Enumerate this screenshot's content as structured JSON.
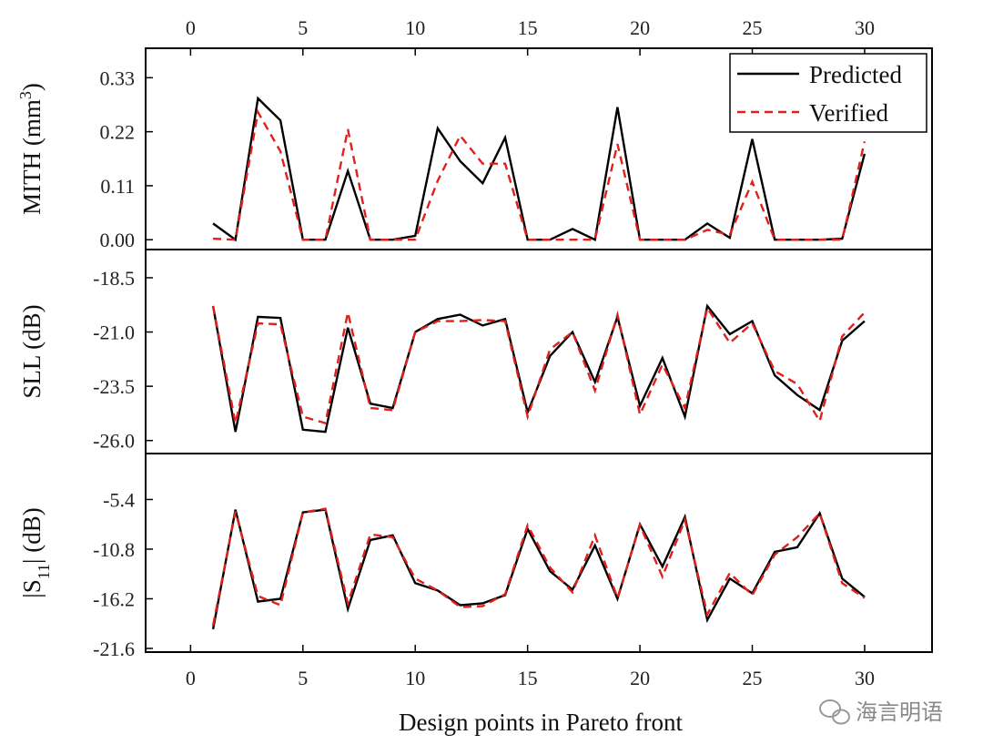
{
  "chart_data": {
    "type": "line",
    "x": [
      1,
      2,
      3,
      4,
      5,
      6,
      7,
      8,
      9,
      10,
      11,
      12,
      13,
      14,
      15,
      16,
      17,
      18,
      19,
      20,
      21,
      22,
      23,
      24,
      25,
      26,
      27,
      28,
      29,
      30
    ],
    "xlabel": "Design points in Pareto front",
    "xlim": [
      -2,
      33
    ],
    "x_ticks": [
      0,
      5,
      10,
      15,
      20,
      25,
      30
    ],
    "legend": {
      "position": "top-right"
    },
    "panels": [
      {
        "id": "mith",
        "ylabel": "MITH (mm",
        "ylabel_sup": "3",
        "ylabel_tail": ")",
        "ylim": [
          -0.02,
          0.39
        ],
        "yticks": [
          "0.33",
          "0.22",
          "0.11",
          "0.00"
        ],
        "series": [
          {
            "name": "Predicted",
            "values": [
              0.033,
              0.0,
              0.288,
              0.243,
              0.0,
              0.0,
              0.14,
              0.0,
              0.0,
              0.008,
              0.227,
              0.16,
              0.115,
              0.208,
              0.0,
              0.0,
              0.022,
              0.0,
              0.27,
              0.0,
              0.0,
              0.0,
              0.033,
              0.004,
              0.205,
              0.0,
              0.0,
              0.0,
              0.002,
              0.175
            ]
          },
          {
            "name": "Verified",
            "values": [
              0.002,
              0.0,
              0.26,
              0.18,
              0.0,
              0.0,
              0.225,
              0.0,
              0.0,
              0.0,
              0.12,
              0.212,
              0.155,
              0.155,
              0.0,
              0.0,
              0.0,
              0.0,
              0.195,
              0.0,
              0.0,
              0.0,
              0.02,
              0.01,
              0.118,
              0.0,
              0.0,
              0.0,
              0.0,
              0.2
            ]
          }
        ]
      },
      {
        "id": "sll",
        "ylabel": "SLL (dB)",
        "ylim": [
          -26.6,
          -17.2
        ],
        "yticks": [
          "-18.5",
          "-21.0",
          "-23.5",
          "-26.0"
        ],
        "series": [
          {
            "name": "Predicted",
            "values": [
              -19.8,
              -25.6,
              -20.3,
              -20.35,
              -25.5,
              -25.6,
              -20.8,
              -24.3,
              -24.5,
              -21.0,
              -20.4,
              -20.2,
              -20.7,
              -20.4,
              -24.7,
              -22.1,
              -21.0,
              -23.3,
              -20.3,
              -24.4,
              -22.2,
              -24.9,
              -19.8,
              -21.1,
              -20.5,
              -23.0,
              -23.9,
              -24.6,
              -21.4,
              -20.5
            ]
          },
          {
            "name": "Verified",
            "values": [
              -19.8,
              -25.2,
              -20.6,
              -20.65,
              -24.9,
              -25.2,
              -20.1,
              -24.5,
              -24.6,
              -21.0,
              -20.5,
              -20.5,
              -20.45,
              -20.5,
              -24.9,
              -21.8,
              -21.0,
              -23.7,
              -20.2,
              -24.8,
              -22.5,
              -24.5,
              -19.9,
              -21.5,
              -20.6,
              -22.8,
              -23.4,
              -25.1,
              -21.2,
              -20.1
            ]
          }
        ]
      },
      {
        "id": "s11",
        "ylabel": "|S",
        "ylabel_sub": "11",
        "ylabel_tail": "| (dB)",
        "ylim": [
          -22.0,
          -0.4
        ],
        "yticks": [
          "-5.4",
          "-10.8",
          "-16.2",
          "-21.6"
        ],
        "series": [
          {
            "name": "Predicted",
            "values": [
              -19.5,
              -6.5,
              -16.5,
              -16.2,
              -6.8,
              -6.5,
              -17.3,
              -9.8,
              -9.3,
              -14.5,
              -15.3,
              -16.9,
              -16.7,
              -15.8,
              -8.6,
              -13.2,
              -15.2,
              -10.4,
              -16.2,
              -8.1,
              -12.7,
              -7.3,
              -18.5,
              -14.0,
              -15.6,
              -11.1,
              -10.6,
              -6.9,
              -14.0,
              -16.0
            ]
          },
          {
            "name": "Verified",
            "values": [
              -19.1,
              -6.7,
              -15.9,
              -16.9,
              -6.8,
              -6.4,
              -16.7,
              -9.2,
              -9.5,
              -14.0,
              -15.3,
              -17.1,
              -17.0,
              -15.7,
              -8.2,
              -12.8,
              -15.5,
              -9.3,
              -16.1,
              -8.2,
              -13.8,
              -7.6,
              -17.9,
              -13.4,
              -15.8,
              -11.4,
              -9.5,
              -6.9,
              -14.5,
              -16.1
            ]
          }
        ]
      }
    ]
  },
  "legend_entries": [
    "Predicted",
    "Verified"
  ],
  "watermark": {
    "text": "海言明语"
  },
  "colors": {
    "predicted": "#000000",
    "verified": "#e0201c",
    "axis": "#000000"
  }
}
